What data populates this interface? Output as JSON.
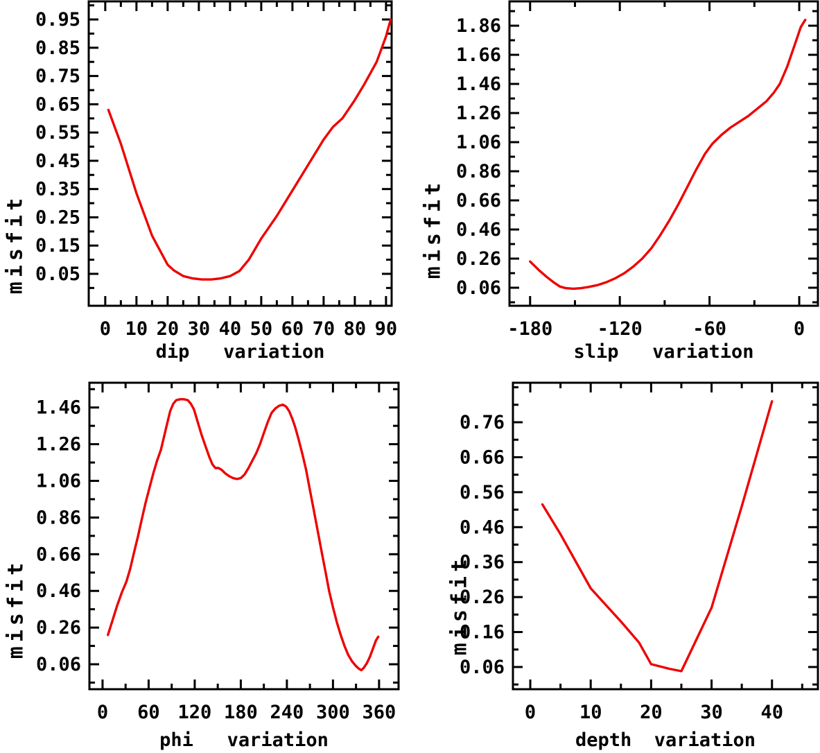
{
  "colors": {
    "curve": "#ee0000",
    "frame": "#000000",
    "text": "#000000",
    "background": "#ffffff"
  },
  "chart_data": [
    {
      "type": "line",
      "id": "dip-variation",
      "xlabel": "dip   variation",
      "ylabel": "misfit",
      "xlim": [
        -5.3,
        91.8
      ],
      "ylim": [
        -0.063,
        1.014
      ],
      "x_ticks": {
        "major": [
          0,
          10,
          20,
          30,
          40,
          50,
          60,
          70,
          80,
          90
        ],
        "labels": [
          "0",
          "10",
          "20",
          "30",
          "40",
          "50",
          "60",
          "70",
          "80",
          "90"
        ],
        "minor": [
          5,
          15,
          25,
          35,
          45,
          55,
          65,
          75,
          85
        ]
      },
      "y_ticks": {
        "major": [
          0.05,
          0.15,
          0.25,
          0.35,
          0.45,
          0.55,
          0.65,
          0.75,
          0.85,
          0.95
        ],
        "labels": [
          "0.05",
          "0.15",
          "0.25",
          "0.35",
          "0.45",
          "0.55",
          "0.65",
          "0.75",
          "0.85",
          "0.95"
        ],
        "minor": [
          0.0,
          0.1,
          0.2,
          0.3,
          0.4,
          0.5,
          0.6,
          0.7,
          0.8,
          0.9,
          1.0
        ]
      },
      "series": [
        {
          "name": "misfit",
          "x": [
            1,
            5,
            10,
            15,
            20,
            22,
            25,
            28,
            31,
            34,
            37,
            40,
            43,
            46,
            50,
            55,
            60,
            65,
            70,
            73,
            76,
            80,
            83,
            87,
            90,
            91.5
          ],
          "y": [
            0.63,
            0.51,
            0.335,
            0.185,
            0.082,
            0.062,
            0.042,
            0.034,
            0.03,
            0.03,
            0.034,
            0.042,
            0.06,
            0.1,
            0.175,
            0.255,
            0.345,
            0.435,
            0.525,
            0.57,
            0.6,
            0.665,
            0.72,
            0.8,
            0.89,
            0.95
          ]
        }
      ]
    },
    {
      "type": "line",
      "id": "slip-variation",
      "xlabel": "slip   variation",
      "ylabel": "misfit",
      "xlim": [
        -193.8,
        12.5
      ],
      "ylim": [
        -0.064,
        2.027
      ],
      "x_ticks": {
        "major": [
          -180,
          -120,
          -60,
          0
        ],
        "labels": [
          "-180",
          "-120",
          "-60",
          "0"
        ],
        "minor": [
          -150,
          -90,
          -30
        ]
      },
      "y_ticks": {
        "major": [
          0.06,
          0.26,
          0.46,
          0.66,
          0.86,
          1.06,
          1.26,
          1.46,
          1.66,
          1.86
        ],
        "labels": [
          "0.06",
          "0.26",
          "0.46",
          "0.66",
          "0.86",
          "1.06",
          "1.26",
          "1.46",
          "1.66",
          "1.86"
        ],
        "minor": [
          -0.04,
          0.16,
          0.36,
          0.56,
          0.76,
          0.96,
          1.16,
          1.36,
          1.56,
          1.76,
          1.96
        ]
      },
      "series": [
        {
          "name": "misfit",
          "x": [
            -180,
            -174,
            -169,
            -164,
            -160,
            -156,
            -151,
            -146,
            -141,
            -135,
            -129,
            -123,
            -117,
            -111,
            -105,
            -99,
            -93,
            -87,
            -81,
            -75,
            -69,
            -63,
            -58,
            -52,
            -46,
            -40,
            -34,
            -28,
            -22,
            -17,
            -13,
            -8,
            -3,
            1,
            4
          ],
          "y": [
            0.24,
            0.18,
            0.135,
            0.095,
            0.068,
            0.057,
            0.053,
            0.057,
            0.065,
            0.078,
            0.098,
            0.125,
            0.16,
            0.205,
            0.26,
            0.33,
            0.42,
            0.52,
            0.63,
            0.75,
            0.87,
            0.98,
            1.05,
            1.11,
            1.16,
            1.2,
            1.24,
            1.29,
            1.34,
            1.4,
            1.46,
            1.58,
            1.73,
            1.85,
            1.9
          ]
        }
      ]
    },
    {
      "type": "line",
      "id": "phi-variation",
      "xlabel": "phi   variation",
      "ylabel": "misfit",
      "xlim": [
        -17.1,
        385.4
      ],
      "ylim": [
        -0.076,
        1.595
      ],
      "x_ticks": {
        "major": [
          0,
          60,
          120,
          180,
          240,
          300,
          360
        ],
        "labels": [
          "0",
          "60",
          "120",
          "180",
          "240",
          "300",
          "360"
        ],
        "minor": [
          30,
          90,
          150,
          210,
          270,
          330
        ]
      },
      "y_ticks": {
        "major": [
          0.06,
          0.26,
          0.46,
          0.66,
          0.86,
          1.06,
          1.26,
          1.46
        ],
        "labels": [
          "0.06",
          "0.26",
          "0.46",
          "0.66",
          "0.86",
          "1.06",
          "1.26",
          "1.46"
        ],
        "minor": [
          -0.04,
          0.16,
          0.36,
          0.56,
          0.76,
          0.96,
          1.16,
          1.36,
          1.56
        ]
      },
      "series": [
        {
          "name": "misfit",
          "x": [
            7,
            13,
            19,
            25,
            31,
            36,
            41,
            46,
            51,
            56,
            61,
            66,
            71,
            76,
            80,
            84,
            88,
            92,
            96,
            101,
            106,
            111,
            115,
            119,
            124,
            129,
            134,
            139,
            143,
            147,
            151,
            155,
            160,
            165,
            170,
            175,
            180,
            185,
            190,
            195,
            200,
            205,
            210,
            215,
            220,
            225,
            230,
            235,
            239,
            243,
            247,
            251,
            255,
            260,
            265,
            270,
            275,
            280,
            285,
            290,
            295,
            300,
            305,
            310,
            315,
            320,
            325,
            330,
            334,
            337,
            340,
            344,
            348,
            352,
            356,
            359
          ],
          "y": [
            0.22,
            0.3,
            0.38,
            0.45,
            0.51,
            0.58,
            0.67,
            0.755,
            0.85,
            0.94,
            1.02,
            1.1,
            1.17,
            1.23,
            1.3,
            1.37,
            1.44,
            1.48,
            1.5,
            1.505,
            1.505,
            1.5,
            1.48,
            1.45,
            1.38,
            1.31,
            1.25,
            1.19,
            1.15,
            1.13,
            1.13,
            1.12,
            1.1,
            1.085,
            1.075,
            1.07,
            1.075,
            1.095,
            1.13,
            1.17,
            1.21,
            1.26,
            1.32,
            1.38,
            1.43,
            1.455,
            1.47,
            1.475,
            1.465,
            1.44,
            1.4,
            1.35,
            1.29,
            1.21,
            1.12,
            1.01,
            0.9,
            0.79,
            0.68,
            0.57,
            0.46,
            0.37,
            0.29,
            0.22,
            0.16,
            0.11,
            0.075,
            0.05,
            0.035,
            0.028,
            0.04,
            0.065,
            0.1,
            0.145,
            0.19,
            0.21
          ]
        }
      ]
    },
    {
      "type": "line",
      "id": "depth-variation",
      "xlabel": "depth  variation",
      "ylabel": "misfit",
      "xlim": [
        -2.87,
        47.6
      ],
      "ylim": [
        -0.0035,
        0.873
      ],
      "x_ticks": {
        "major": [
          0,
          10,
          20,
          30,
          40
        ],
        "labels": [
          "0",
          "10",
          "20",
          "30",
          "40"
        ],
        "minor": [
          5,
          15,
          25,
          35,
          45
        ]
      },
      "y_ticks": {
        "major": [
          0.06,
          0.16,
          0.26,
          0.36,
          0.46,
          0.56,
          0.66,
          0.76
        ],
        "labels": [
          "0.06",
          "0.16",
          "0.26",
          "0.36",
          "0.46",
          "0.56",
          "0.66",
          "0.76"
        ],
        "minor": [
          0.01,
          0.11,
          0.21,
          0.31,
          0.41,
          0.51,
          0.61,
          0.71,
          0.81,
          0.86
        ]
      },
      "series": [
        {
          "name": "misfit",
          "x": [
            2,
            5,
            10,
            15,
            18,
            20,
            23,
            25,
            30,
            35,
            40
          ],
          "y": [
            0.525,
            0.44,
            0.285,
            0.19,
            0.13,
            0.068,
            0.055,
            0.048,
            0.23,
            0.52,
            0.82
          ]
        }
      ]
    }
  ]
}
